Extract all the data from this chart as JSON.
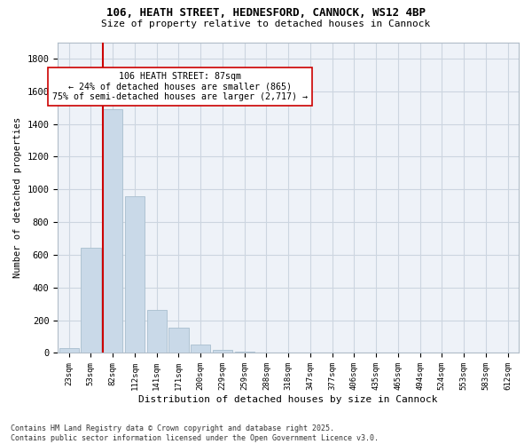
{
  "title_line1": "106, HEATH STREET, HEDNESFORD, CANNOCK, WS12 4BP",
  "title_line2": "Size of property relative to detached houses in Cannock",
  "xlabel": "Distribution of detached houses by size in Cannock",
  "ylabel": "Number of detached properties",
  "categories": [
    "23sqm",
    "53sqm",
    "82sqm",
    "112sqm",
    "141sqm",
    "171sqm",
    "200sqm",
    "229sqm",
    "259sqm",
    "288sqm",
    "318sqm",
    "347sqm",
    "377sqm",
    "406sqm",
    "435sqm",
    "465sqm",
    "494sqm",
    "524sqm",
    "553sqm",
    "583sqm",
    "612sqm"
  ],
  "values": [
    30,
    645,
    1490,
    960,
    265,
    155,
    50,
    20,
    10,
    5,
    3,
    2,
    1,
    1,
    0,
    0,
    0,
    0,
    0,
    0,
    0
  ],
  "bar_color": "#c9d9e8",
  "bar_edgecolor": "#a8bece",
  "vline_color": "#cc0000",
  "vline_index": 2,
  "annotation_text": "106 HEATH STREET: 87sqm\n← 24% of detached houses are smaller (865)\n75% of semi-detached houses are larger (2,717) →",
  "annotation_box_edgecolor": "#cc0000",
  "annotation_box_facecolor": "#ffffff",
  "ylim": [
    0,
    1900
  ],
  "yticks": [
    0,
    200,
    400,
    600,
    800,
    1000,
    1200,
    1400,
    1600,
    1800
  ],
  "grid_color": "#ccd5e0",
  "bg_color": "#eef2f8",
  "footnote": "Contains HM Land Registry data © Crown copyright and database right 2025.\nContains public sector information licensed under the Open Government Licence v3.0."
}
